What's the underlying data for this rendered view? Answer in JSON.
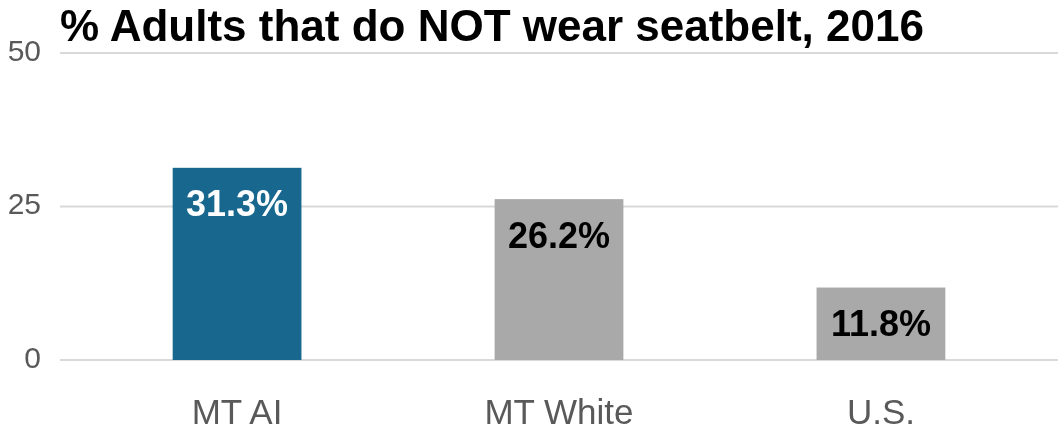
{
  "chart_data": {
    "type": "bar",
    "title": "% Adults that do NOT wear seatbelt, 2016",
    "categories": [
      "MT AI",
      "MT White",
      "U.S."
    ],
    "values": [
      31.3,
      26.2,
      11.8
    ],
    "colors": [
      "#17678f",
      "#a9a9a9",
      "#a9a9a9"
    ],
    "value_labels": [
      "31.3%",
      "26.2%",
      "11.8%"
    ],
    "ylim": [
      0,
      50
    ],
    "yticks": [
      0,
      25,
      50
    ],
    "grid": "y"
  }
}
